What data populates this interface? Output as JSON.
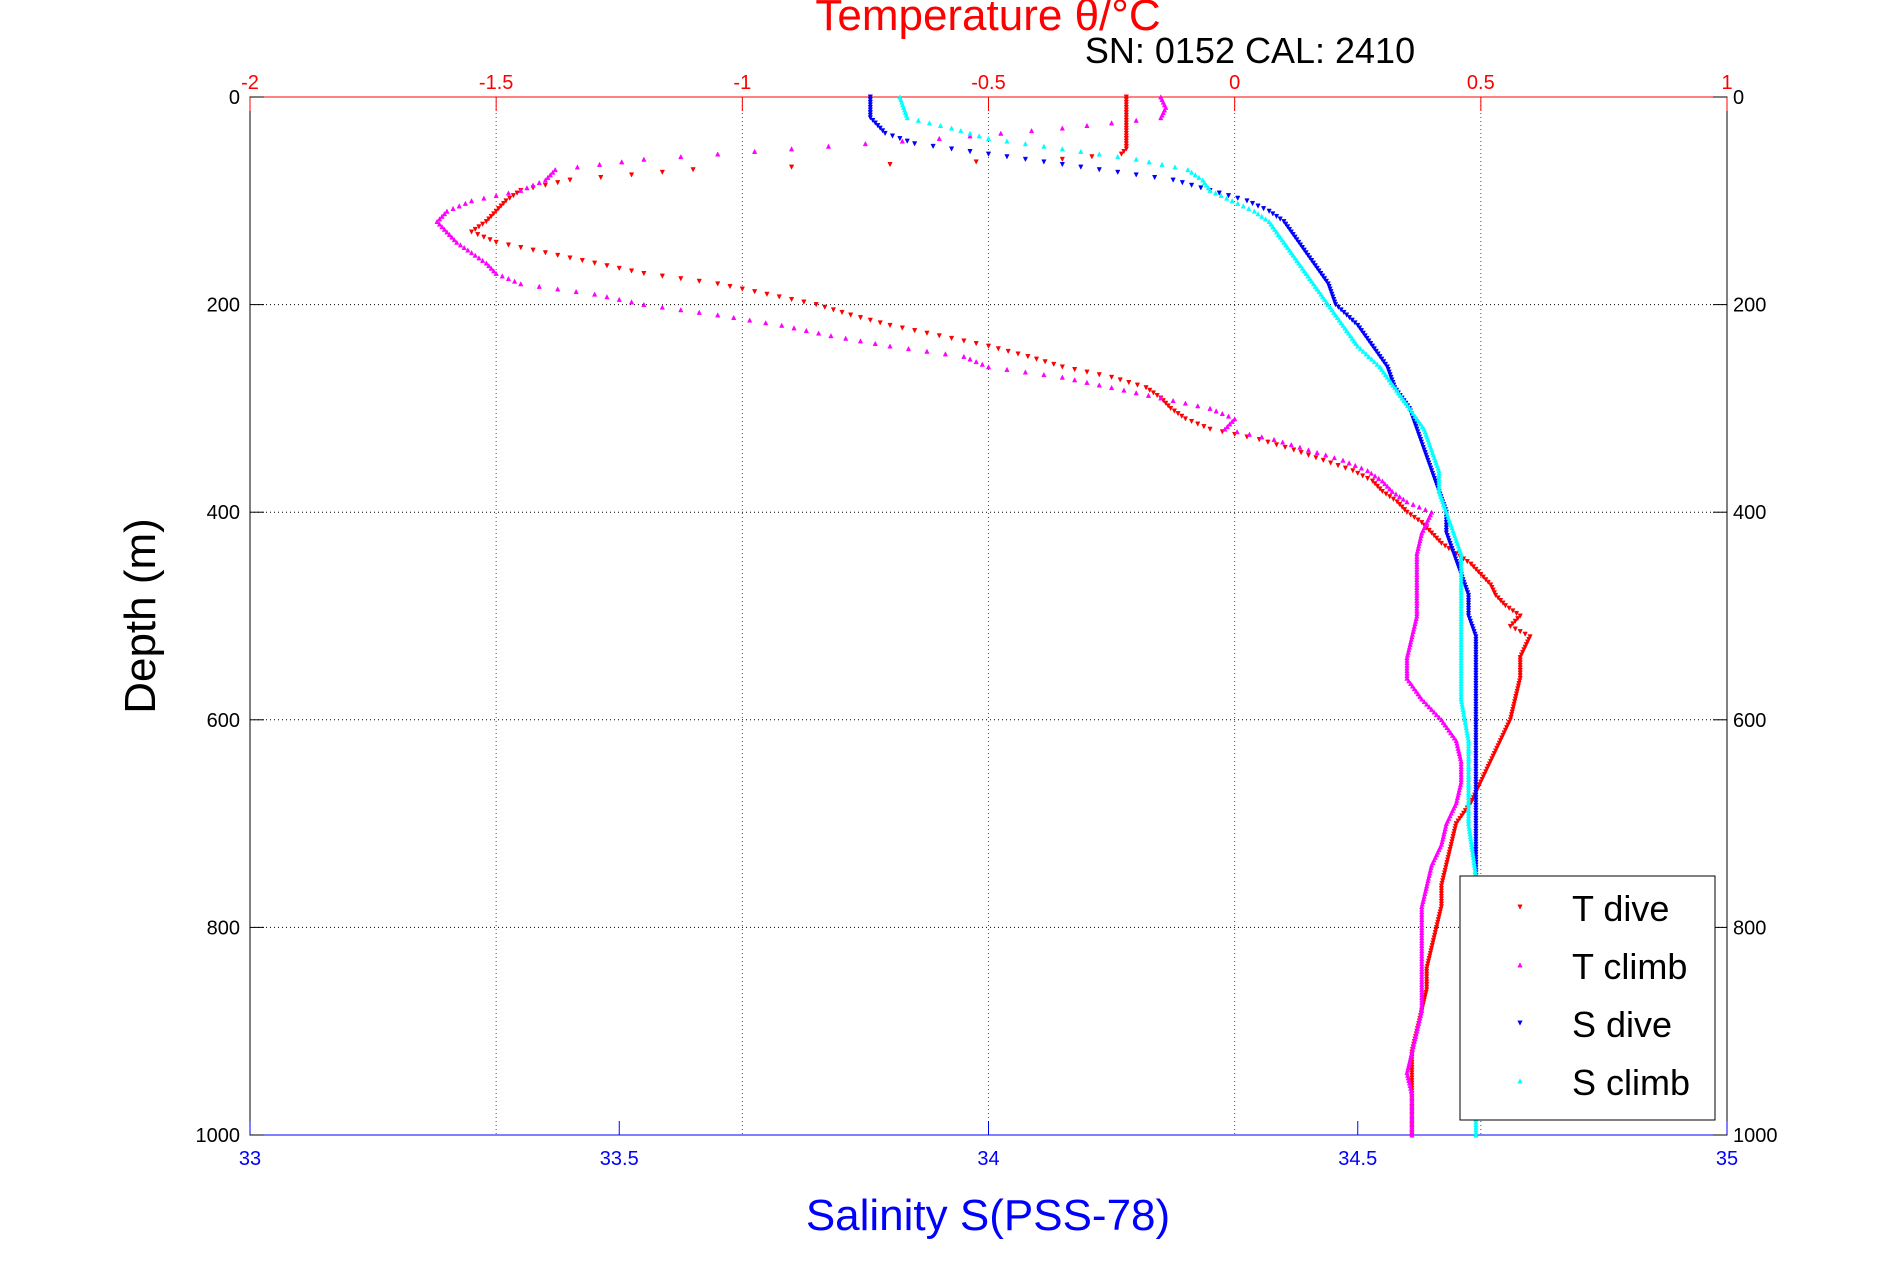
{
  "header": {
    "serial_label": "SN: 0152  CAL: 2410"
  },
  "colors": {
    "temperature_axis": "#ff0000",
    "salinity_axis": "#0000ff",
    "depth_axis": "#000000",
    "t_dive": "#ff0000",
    "t_climb": "#ff00ff",
    "s_dive": "#0000ff",
    "s_climb": "#00ffff"
  },
  "chart_data": {
    "type": "scatter",
    "title": "Temperature θ/°C",
    "xlabel": "Salinity S(PSS-78)",
    "ylabel": "Depth (m)",
    "x_top": {
      "label": "Temperature θ/°C",
      "range": [
        -2,
        1
      ],
      "ticks": [
        -2,
        -1.5,
        -1,
        -0.5,
        0,
        0.5,
        1
      ],
      "tick_labels": [
        "-2",
        "-1.5",
        "-1",
        "-0.5",
        "0",
        "0.5",
        "1"
      ]
    },
    "x_bottom": {
      "label": "Salinity S(PSS-78)",
      "range": [
        33,
        35
      ],
      "ticks": [
        33,
        33.5,
        34,
        34.5,
        35
      ],
      "tick_labels": [
        "33",
        "33.5",
        "34",
        "34.5",
        "35"
      ]
    },
    "y": {
      "label": "Depth (m)",
      "range": [
        0,
        1000
      ],
      "reversed": true,
      "ticks": [
        0,
        200,
        400,
        600,
        800,
        1000
      ],
      "tick_labels": [
        "0",
        "200",
        "400",
        "600",
        "800",
        "1000"
      ]
    },
    "grid": true,
    "legend_position": "bottom-right",
    "legend": [
      "T dive",
      "T climb",
      "S dive",
      "S climb"
    ],
    "series": [
      {
        "name": "T dive",
        "axis": "temperature",
        "marker": "triangle-down",
        "points": [
          [
            -0.22,
            0
          ],
          [
            -0.22,
            30
          ],
          [
            -0.22,
            50
          ],
          [
            -0.23,
            55
          ],
          [
            -0.35,
            60
          ],
          [
            -0.7,
            65
          ],
          [
            -1.1,
            70
          ],
          [
            -1.35,
            80
          ],
          [
            -1.45,
            90
          ],
          [
            -1.48,
            100
          ],
          [
            -1.5,
            110
          ],
          [
            -1.52,
            120
          ],
          [
            -1.55,
            130
          ],
          [
            -1.5,
            140
          ],
          [
            -1.4,
            150
          ],
          [
            -1.3,
            160
          ],
          [
            -1.2,
            170
          ],
          [
            -1.05,
            180
          ],
          [
            -0.95,
            190
          ],
          [
            -0.85,
            200
          ],
          [
            -0.78,
            210
          ],
          [
            -0.7,
            220
          ],
          [
            -0.6,
            230
          ],
          [
            -0.5,
            240
          ],
          [
            -0.42,
            250
          ],
          [
            -0.35,
            260
          ],
          [
            -0.25,
            270
          ],
          [
            -0.18,
            280
          ],
          [
            -0.15,
            290
          ],
          [
            -0.13,
            300
          ],
          [
            -0.1,
            310
          ],
          [
            -0.05,
            320
          ],
          [
            0.05,
            330
          ],
          [
            0.12,
            340
          ],
          [
            0.18,
            350
          ],
          [
            0.24,
            360
          ],
          [
            0.28,
            370
          ],
          [
            0.3,
            380
          ],
          [
            0.33,
            390
          ],
          [
            0.35,
            400
          ],
          [
            0.38,
            410
          ],
          [
            0.4,
            420
          ],
          [
            0.42,
            430
          ],
          [
            0.45,
            440
          ],
          [
            0.48,
            450
          ],
          [
            0.5,
            460
          ],
          [
            0.52,
            470
          ],
          [
            0.53,
            480
          ],
          [
            0.55,
            490
          ],
          [
            0.58,
            500
          ],
          [
            0.56,
            510
          ],
          [
            0.6,
            520
          ],
          [
            0.58,
            540
          ],
          [
            0.58,
            560
          ],
          [
            0.57,
            580
          ],
          [
            0.56,
            600
          ],
          [
            0.54,
            620
          ],
          [
            0.52,
            640
          ],
          [
            0.5,
            660
          ],
          [
            0.48,
            680
          ],
          [
            0.45,
            700
          ],
          [
            0.44,
            720
          ],
          [
            0.43,
            740
          ],
          [
            0.42,
            760
          ],
          [
            0.42,
            780
          ],
          [
            0.41,
            800
          ],
          [
            0.4,
            820
          ],
          [
            0.39,
            840
          ],
          [
            0.39,
            860
          ],
          [
            0.38,
            880
          ],
          [
            0.37,
            900
          ],
          [
            0.36,
            920
          ],
          [
            0.36,
            940
          ],
          [
            0.36,
            960
          ],
          [
            0.36,
            980
          ],
          [
            0.36,
            1000
          ]
        ]
      },
      {
        "name": "T climb",
        "axis": "temperature",
        "marker": "triangle-up",
        "points": [
          [
            -0.15,
            0
          ],
          [
            -0.14,
            10
          ],
          [
            -0.15,
            20
          ],
          [
            -0.35,
            30
          ],
          [
            -0.6,
            40
          ],
          [
            -0.9,
            50
          ],
          [
            -1.2,
            60
          ],
          [
            -1.38,
            70
          ],
          [
            -1.4,
            80
          ],
          [
            -1.45,
            90
          ],
          [
            -1.55,
            100
          ],
          [
            -1.6,
            110
          ],
          [
            -1.62,
            120
          ],
          [
            -1.6,
            130
          ],
          [
            -1.58,
            140
          ],
          [
            -1.55,
            150
          ],
          [
            -1.52,
            160
          ],
          [
            -1.5,
            170
          ],
          [
            -1.45,
            180
          ],
          [
            -1.3,
            190
          ],
          [
            -1.2,
            200
          ],
          [
            -1.05,
            210
          ],
          [
            -0.92,
            220
          ],
          [
            -0.82,
            230
          ],
          [
            -0.7,
            240
          ],
          [
            -0.55,
            250
          ],
          [
            -0.5,
            260
          ],
          [
            -0.35,
            270
          ],
          [
            -0.25,
            280
          ],
          [
            -0.15,
            290
          ],
          [
            -0.05,
            300
          ],
          [
            0.0,
            310
          ],
          [
            -0.02,
            320
          ],
          [
            0.08,
            330
          ],
          [
            0.15,
            340
          ],
          [
            0.22,
            350
          ],
          [
            0.27,
            360
          ],
          [
            0.3,
            370
          ],
          [
            0.32,
            380
          ],
          [
            0.35,
            390
          ],
          [
            0.4,
            400
          ],
          [
            0.38,
            420
          ],
          [
            0.37,
            440
          ],
          [
            0.37,
            460
          ],
          [
            0.37,
            480
          ],
          [
            0.37,
            500
          ],
          [
            0.36,
            520
          ],
          [
            0.35,
            540
          ],
          [
            0.35,
            560
          ],
          [
            0.38,
            580
          ],
          [
            0.42,
            600
          ],
          [
            0.45,
            620
          ],
          [
            0.46,
            640
          ],
          [
            0.46,
            660
          ],
          [
            0.45,
            680
          ],
          [
            0.43,
            700
          ],
          [
            0.42,
            720
          ],
          [
            0.4,
            740
          ],
          [
            0.39,
            760
          ],
          [
            0.38,
            780
          ],
          [
            0.38,
            800
          ],
          [
            0.38,
            820
          ],
          [
            0.38,
            840
          ],
          [
            0.38,
            860
          ],
          [
            0.38,
            880
          ],
          [
            0.37,
            900
          ],
          [
            0.36,
            920
          ],
          [
            0.35,
            940
          ],
          [
            0.36,
            960
          ],
          [
            0.36,
            980
          ],
          [
            0.36,
            1000
          ]
        ]
      },
      {
        "name": "S dive",
        "axis": "salinity",
        "marker": "triangle-down",
        "points": [
          [
            33.84,
            0
          ],
          [
            33.84,
            20
          ],
          [
            33.86,
            35
          ],
          [
            33.9,
            45
          ],
          [
            33.95,
            50
          ],
          [
            34.05,
            60
          ],
          [
            34.15,
            70
          ],
          [
            34.25,
            80
          ],
          [
            34.3,
            90
          ],
          [
            34.35,
            100
          ],
          [
            34.38,
            110
          ],
          [
            34.4,
            120
          ],
          [
            34.42,
            140
          ],
          [
            34.44,
            160
          ],
          [
            34.46,
            180
          ],
          [
            34.47,
            200
          ],
          [
            34.5,
            220
          ],
          [
            34.52,
            240
          ],
          [
            34.54,
            260
          ],
          [
            34.55,
            280
          ],
          [
            34.57,
            300
          ],
          [
            34.58,
            320
          ],
          [
            34.59,
            340
          ],
          [
            34.6,
            360
          ],
          [
            34.61,
            380
          ],
          [
            34.62,
            400
          ],
          [
            34.62,
            420
          ],
          [
            34.63,
            440
          ],
          [
            34.64,
            460
          ],
          [
            34.65,
            480
          ],
          [
            34.65,
            500
          ],
          [
            34.66,
            520
          ],
          [
            34.66,
            540
          ],
          [
            34.66,
            560
          ],
          [
            34.66,
            580
          ],
          [
            34.66,
            600
          ],
          [
            34.66,
            650
          ],
          [
            34.66,
            700
          ],
          [
            34.66,
            750
          ],
          [
            34.66,
            800
          ]
        ]
      },
      {
        "name": "S climb",
        "axis": "salinity",
        "marker": "triangle-up",
        "points": [
          [
            33.88,
            0
          ],
          [
            33.89,
            20
          ],
          [
            33.95,
            30
          ],
          [
            34.0,
            40
          ],
          [
            34.1,
            50
          ],
          [
            34.2,
            60
          ],
          [
            34.27,
            70
          ],
          [
            34.29,
            80
          ],
          [
            34.3,
            90
          ],
          [
            34.33,
            100
          ],
          [
            34.36,
            110
          ],
          [
            34.38,
            120
          ],
          [
            34.4,
            140
          ],
          [
            34.42,
            160
          ],
          [
            34.44,
            180
          ],
          [
            34.46,
            200
          ],
          [
            34.48,
            220
          ],
          [
            34.5,
            240
          ],
          [
            34.53,
            260
          ],
          [
            34.55,
            280
          ],
          [
            34.57,
            300
          ],
          [
            34.59,
            320
          ],
          [
            34.6,
            340
          ],
          [
            34.61,
            360
          ],
          [
            34.61,
            380
          ],
          [
            34.62,
            400
          ],
          [
            34.63,
            420
          ],
          [
            34.64,
            440
          ],
          [
            34.64,
            460
          ],
          [
            34.64,
            500
          ],
          [
            34.64,
            540
          ],
          [
            34.64,
            580
          ],
          [
            34.65,
            620
          ],
          [
            34.65,
            660
          ],
          [
            34.65,
            700
          ],
          [
            34.66,
            750
          ],
          [
            34.66,
            800
          ],
          [
            34.66,
            850
          ],
          [
            34.66,
            900
          ],
          [
            34.66,
            950
          ],
          [
            34.66,
            1000
          ]
        ]
      }
    ]
  }
}
